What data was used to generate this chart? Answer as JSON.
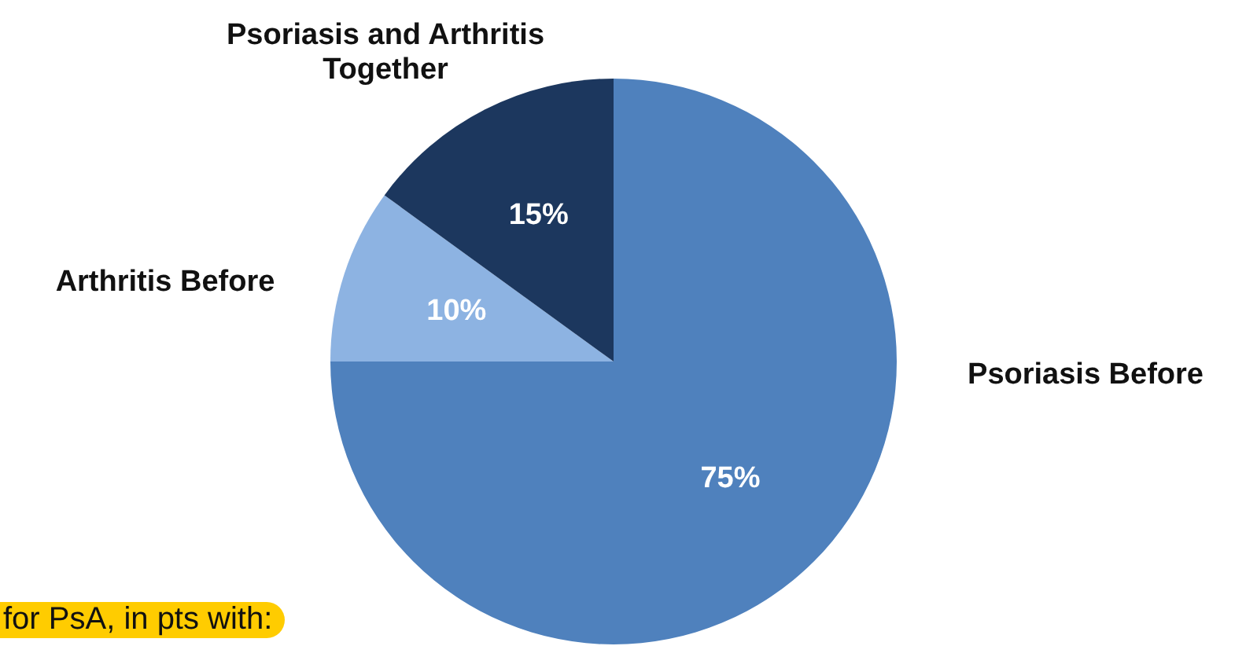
{
  "chart_data": {
    "type": "pie",
    "categories": [
      "Psoriasis Before",
      "Arthritis Before",
      "Psoriasis and Arthritis Together"
    ],
    "values": [
      75,
      10,
      15
    ],
    "colors": [
      "#4f81bd",
      "#8db3e2",
      "#1c375e"
    ],
    "value_labels": [
      "75%",
      "10%",
      "15%"
    ],
    "annotations": [
      "for PsA, in pts with:"
    ]
  }
}
